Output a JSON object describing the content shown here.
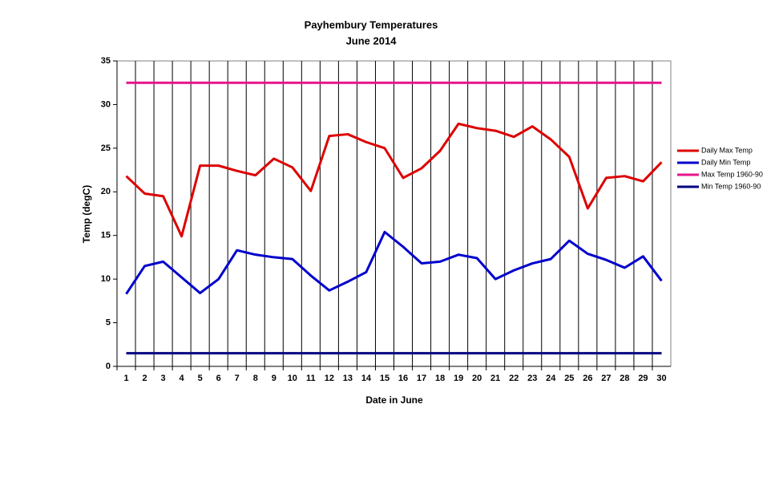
{
  "chart_data": {
    "type": "line",
    "title": "Payhembury Temperatures",
    "subtitle": "June 2014",
    "x_label": "Date in June",
    "y_label": "Temp (degC)",
    "categories": [
      "1",
      "2",
      "3",
      "4",
      "5",
      "6",
      "7",
      "8",
      "9",
      "10",
      "11",
      "12",
      "13",
      "14",
      "15",
      "16",
      "17",
      "18",
      "19",
      "20",
      "21",
      "22",
      "23",
      "24",
      "25",
      "26",
      "27",
      "28",
      "29",
      "30"
    ],
    "series": [
      {
        "name": "Daily Max Temp",
        "color": "#dd0000",
        "values": [
          21.8,
          19.8,
          19.5,
          14.9,
          23.0,
          23.0,
          22.4,
          21.9,
          23.8,
          22.8,
          20.1,
          26.4,
          26.6,
          25.7,
          25.0,
          21.6,
          22.7,
          24.7,
          27.8,
          27.3,
          27.0,
          26.3,
          27.5,
          26.0,
          24.0,
          18.1,
          21.6,
          21.8,
          21.2,
          23.4
        ]
      },
      {
        "name": "Daily Min Temp",
        "color": "#0000cc",
        "values": [
          8.3,
          11.5,
          12.0,
          10.2,
          8.4,
          10.0,
          13.3,
          12.8,
          12.5,
          12.3,
          10.4,
          8.7,
          9.7,
          10.8,
          15.4,
          13.7,
          11.8,
          12.0,
          12.8,
          12.4,
          10.0,
          11.0,
          11.8,
          12.3,
          14.4,
          12.9,
          12.2,
          11.3,
          12.6,
          9.8
        ]
      },
      {
        "name": "Max Temp 1960-90",
        "color": "#e6148c",
        "values": [
          32.5,
          32.5,
          32.5,
          32.5,
          32.5,
          32.5,
          32.5,
          32.5,
          32.5,
          32.5,
          32.5,
          32.5,
          32.5,
          32.5,
          32.5,
          32.5,
          32.5,
          32.5,
          32.5,
          32.5,
          32.5,
          32.5,
          32.5,
          32.5,
          32.5,
          32.5,
          32.5,
          32.5,
          32.5,
          32.5
        ]
      },
      {
        "name": "Min Temp 1960-90",
        "color": "#000080",
        "values": [
          1.5,
          1.5,
          1.5,
          1.5,
          1.5,
          1.5,
          1.5,
          1.5,
          1.5,
          1.5,
          1.5,
          1.5,
          1.5,
          1.5,
          1.5,
          1.5,
          1.5,
          1.5,
          1.5,
          1.5,
          1.5,
          1.5,
          1.5,
          1.5,
          1.5,
          1.5,
          1.5,
          1.5,
          1.5,
          1.5
        ]
      }
    ],
    "ylim": [
      0,
      35
    ],
    "yticks": [
      0,
      5,
      10,
      15,
      20,
      25,
      30,
      35
    ],
    "legend": "right"
  }
}
